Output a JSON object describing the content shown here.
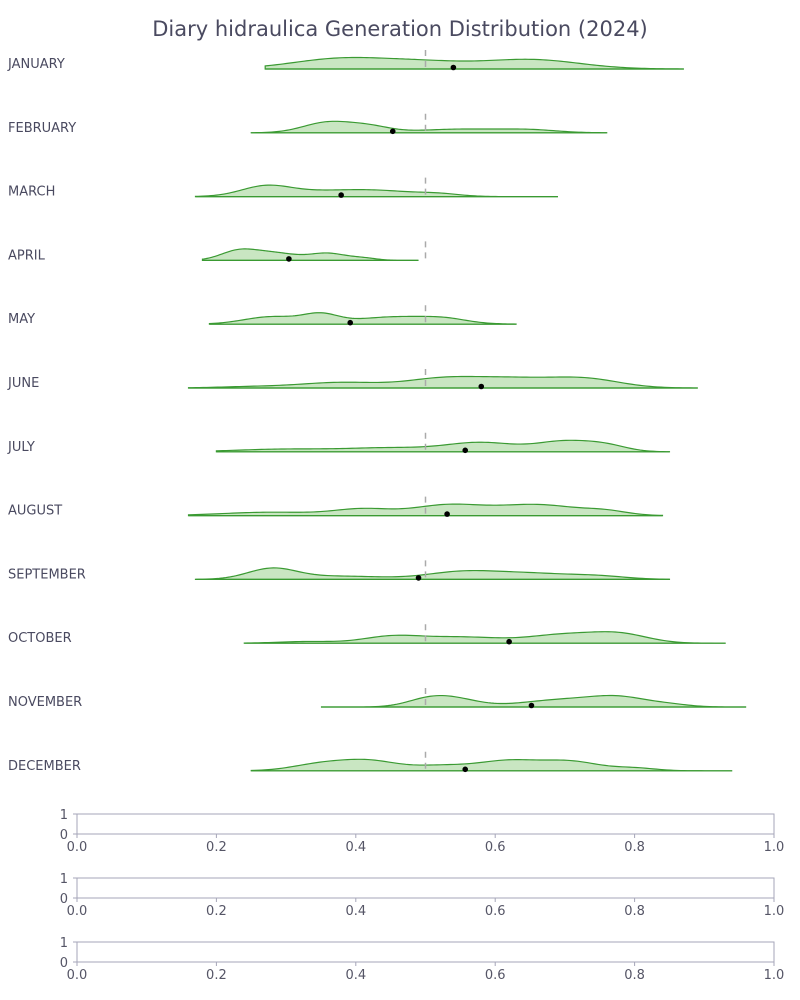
{
  "chart_data": [
    {
      "type": "ridgeline",
      "title": "Diary hidraulica Generation Distribution (2024)",
      "reference_x": 0.5,
      "x_domain": [
        0.0,
        1.0
      ],
      "series": [
        {
          "name": "JANUARY",
          "range": [
            0.27,
            0.87
          ],
          "mean": 0.54,
          "peaks": [
            [
              0.38,
              0.07,
              1.0
            ],
            [
              0.5,
              0.06,
              0.55
            ],
            [
              0.65,
              0.07,
              0.9
            ]
          ]
        },
        {
          "name": "FEBRUARY",
          "range": [
            0.25,
            0.76
          ],
          "mean": 0.453,
          "peaks": [
            [
              0.36,
              0.035,
              1.0
            ],
            [
              0.42,
              0.03,
              0.55
            ],
            [
              0.55,
              0.06,
              0.35
            ],
            [
              0.65,
              0.04,
              0.25
            ]
          ]
        },
        {
          "name": "MARCH",
          "range": [
            0.17,
            0.69
          ],
          "mean": 0.379,
          "peaks": [
            [
              0.27,
              0.035,
              1.0
            ],
            [
              0.35,
              0.06,
              0.55
            ],
            [
              0.44,
              0.05,
              0.5
            ],
            [
              0.52,
              0.03,
              0.25
            ]
          ]
        },
        {
          "name": "APRIL",
          "range": [
            0.18,
            0.49
          ],
          "mean": 0.304,
          "peaks": [
            [
              0.23,
              0.025,
              0.9
            ],
            [
              0.28,
              0.035,
              0.85
            ],
            [
              0.36,
              0.025,
              0.75
            ],
            [
              0.41,
              0.02,
              0.25
            ]
          ]
        },
        {
          "name": "MAY",
          "range": [
            0.19,
            0.63
          ],
          "mean": 0.392,
          "peaks": [
            [
              0.28,
              0.04,
              0.75
            ],
            [
              0.35,
              0.025,
              0.85
            ],
            [
              0.46,
              0.06,
              0.75
            ],
            [
              0.53,
              0.03,
              0.3
            ]
          ]
        },
        {
          "name": "JUNE",
          "range": [
            0.16,
            0.89
          ],
          "mean": 0.58,
          "peaks": [
            [
              0.25,
              0.05,
              0.1
            ],
            [
              0.38,
              0.06,
              0.45
            ],
            [
              0.52,
              0.05,
              0.65
            ],
            [
              0.62,
              0.06,
              0.75
            ],
            [
              0.73,
              0.05,
              0.7
            ]
          ]
        },
        {
          "name": "JULY",
          "range": [
            0.2,
            0.85
          ],
          "mean": 0.557,
          "peaks": [
            [
              0.3,
              0.07,
              0.25
            ],
            [
              0.45,
              0.06,
              0.35
            ],
            [
              0.58,
              0.05,
              0.85
            ],
            [
              0.7,
              0.04,
              0.95
            ],
            [
              0.76,
              0.03,
              0.5
            ]
          ]
        },
        {
          "name": "AUGUST",
          "range": [
            0.16,
            0.84
          ],
          "mean": 0.531,
          "peaks": [
            [
              0.28,
              0.07,
              0.25
            ],
            [
              0.41,
              0.04,
              0.45
            ],
            [
              0.53,
              0.05,
              0.75
            ],
            [
              0.66,
              0.06,
              0.8
            ],
            [
              0.76,
              0.03,
              0.25
            ]
          ]
        },
        {
          "name": "SEPTEMBER",
          "range": [
            0.17,
            0.85
          ],
          "mean": 0.49,
          "peaks": [
            [
              0.28,
              0.035,
              1.0
            ],
            [
              0.38,
              0.06,
              0.3
            ],
            [
              0.55,
              0.05,
              0.65
            ],
            [
              0.65,
              0.06,
              0.55
            ],
            [
              0.75,
              0.04,
              0.25
            ]
          ]
        },
        {
          "name": "OCTOBER",
          "range": [
            0.24,
            0.93
          ],
          "mean": 0.62,
          "peaks": [
            [
              0.33,
              0.04,
              0.15
            ],
            [
              0.45,
              0.04,
              0.55
            ],
            [
              0.55,
              0.06,
              0.55
            ],
            [
              0.7,
              0.05,
              0.75
            ],
            [
              0.78,
              0.04,
              0.75
            ]
          ]
        },
        {
          "name": "NOVEMBER",
          "range": [
            0.35,
            0.96
          ],
          "mean": 0.652,
          "peaks": [
            [
              0.5,
              0.03,
              0.55
            ],
            [
              0.54,
              0.035,
              0.75
            ],
            [
              0.7,
              0.06,
              0.7
            ],
            [
              0.78,
              0.04,
              0.75
            ],
            [
              0.85,
              0.03,
              0.2
            ]
          ]
        },
        {
          "name": "DECEMBER",
          "range": [
            0.25,
            0.94
          ],
          "mean": 0.557,
          "peaks": [
            [
              0.35,
              0.04,
              0.5
            ],
            [
              0.42,
              0.04,
              0.7
            ],
            [
              0.52,
              0.04,
              0.35
            ],
            [
              0.62,
              0.045,
              0.75
            ],
            [
              0.71,
              0.04,
              0.65
            ],
            [
              0.8,
              0.03,
              0.2
            ]
          ]
        }
      ],
      "colors": {
        "fill": "#c9e6c2",
        "line": "#3a9a32",
        "mean_marker": "#000000",
        "reference": "#aaaaaa"
      }
    },
    {
      "type": "line",
      "series": [],
      "xlim": [
        0.0,
        1.0
      ],
      "ylim": [
        0,
        1
      ],
      "x_ticks": [
        "0.0",
        "0.2",
        "0.4",
        "0.6",
        "0.8",
        "1.0"
      ],
      "y_ticks": [
        "0",
        "1"
      ]
    },
    {
      "type": "line",
      "series": [],
      "xlim": [
        0.0,
        1.0
      ],
      "ylim": [
        0,
        1
      ],
      "x_ticks": [
        "0.0",
        "0.2",
        "0.4",
        "0.6",
        "0.8",
        "1.0"
      ],
      "y_ticks": [
        "0",
        "1"
      ]
    },
    {
      "type": "line",
      "series": [],
      "xlim": [
        0.0,
        1.0
      ],
      "ylim": [
        0,
        1
      ],
      "x_ticks": [
        "0.0",
        "0.2",
        "0.4",
        "0.6",
        "0.8",
        "1.0"
      ],
      "y_ticks": [
        "0",
        "1"
      ]
    }
  ]
}
